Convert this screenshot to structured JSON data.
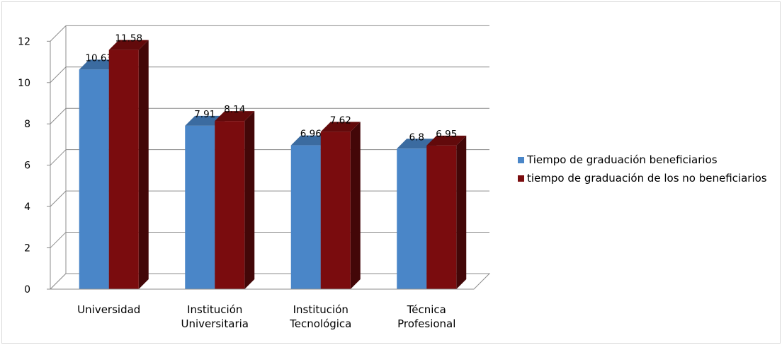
{
  "chart_data": {
    "type": "bar",
    "title": "",
    "xlabel": "",
    "ylabel": "",
    "categories": [
      [
        "Universidad"
      ],
      [
        "Institución",
        "Universitaria"
      ],
      [
        "Institución",
        "Tecnológica"
      ],
      [
        "Técnica",
        "Profesional"
      ]
    ],
    "series": [
      {
        "name": "Tiempo de graduación beneficiarios",
        "values": [
          10.63,
          7.91,
          6.96,
          6.8
        ],
        "labels": [
          "10.63",
          "7.91",
          "6.96",
          "6.8"
        ],
        "color": "#4a86c8"
      },
      {
        "name": "tiempo de graduación de los no beneficiarios",
        "values": [
          11.58,
          8.14,
          7.62,
          6.95
        ],
        "labels": [
          "11.58",
          "8.14",
          "7.62",
          "6.95"
        ],
        "color": "#7a0c0e"
      }
    ],
    "ylim": [
      0,
      12
    ],
    "yticks": [
      "0",
      "2",
      "4",
      "6",
      "8",
      "10",
      "12"
    ],
    "grid": true,
    "legend": "right",
    "style": "3d-clustered-column"
  }
}
